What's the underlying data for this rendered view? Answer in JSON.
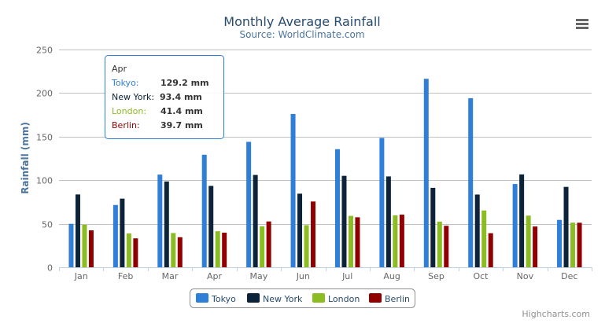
{
  "chart_data": {
    "type": "bar",
    "title": "Monthly Average Rainfall",
    "subtitle": "Source: WorldClimate.com",
    "xlabel": "",
    "ylabel": "Rainfall (mm)",
    "ylim": [
      0,
      250
    ],
    "yticks": [
      "0",
      "50",
      "100",
      "150",
      "200",
      "250"
    ],
    "grid": true,
    "legend": "bottom",
    "categories": [
      "Jan",
      "Feb",
      "Mar",
      "Apr",
      "May",
      "Jun",
      "Jul",
      "Aug",
      "Sep",
      "Oct",
      "Nov",
      "Dec"
    ],
    "series": [
      {
        "name": "Tokyo",
        "color": "#2f7ed8",
        "values": [
          49.9,
          71.5,
          106.4,
          129.2,
          144.0,
          176.0,
          135.6,
          148.5,
          216.4,
          194.1,
          95.6,
          54.4
        ]
      },
      {
        "name": "New York",
        "color": "#0d233a",
        "values": [
          83.6,
          78.8,
          98.5,
          93.4,
          106.0,
          84.5,
          105.0,
          104.3,
          91.2,
          83.5,
          106.6,
          92.3
        ]
      },
      {
        "name": "London",
        "color": "#8bbc21",
        "values": [
          48.9,
          38.8,
          39.3,
          41.4,
          47.0,
          48.3,
          59.0,
          59.6,
          52.4,
          65.2,
          59.3,
          51.2
        ]
      },
      {
        "name": "Berlin",
        "color": "#910000",
        "values": [
          42.4,
          33.2,
          34.5,
          39.7,
          52.6,
          75.5,
          57.4,
          60.4,
          47.6,
          39.1,
          46.8,
          51.1
        ]
      }
    ],
    "tooltip": {
      "header": "Apr",
      "rows": [
        {
          "name": "Tokyo:",
          "value": "129.2 mm"
        },
        {
          "name": "New York:",
          "value": "93.4 mm"
        },
        {
          "name": "London:",
          "value": "41.4 mm"
        },
        {
          "name": "Berlin:",
          "value": "39.7 mm"
        }
      ]
    },
    "credits": "Highcharts.com"
  },
  "menu_icon": "hamburger-menu-icon"
}
